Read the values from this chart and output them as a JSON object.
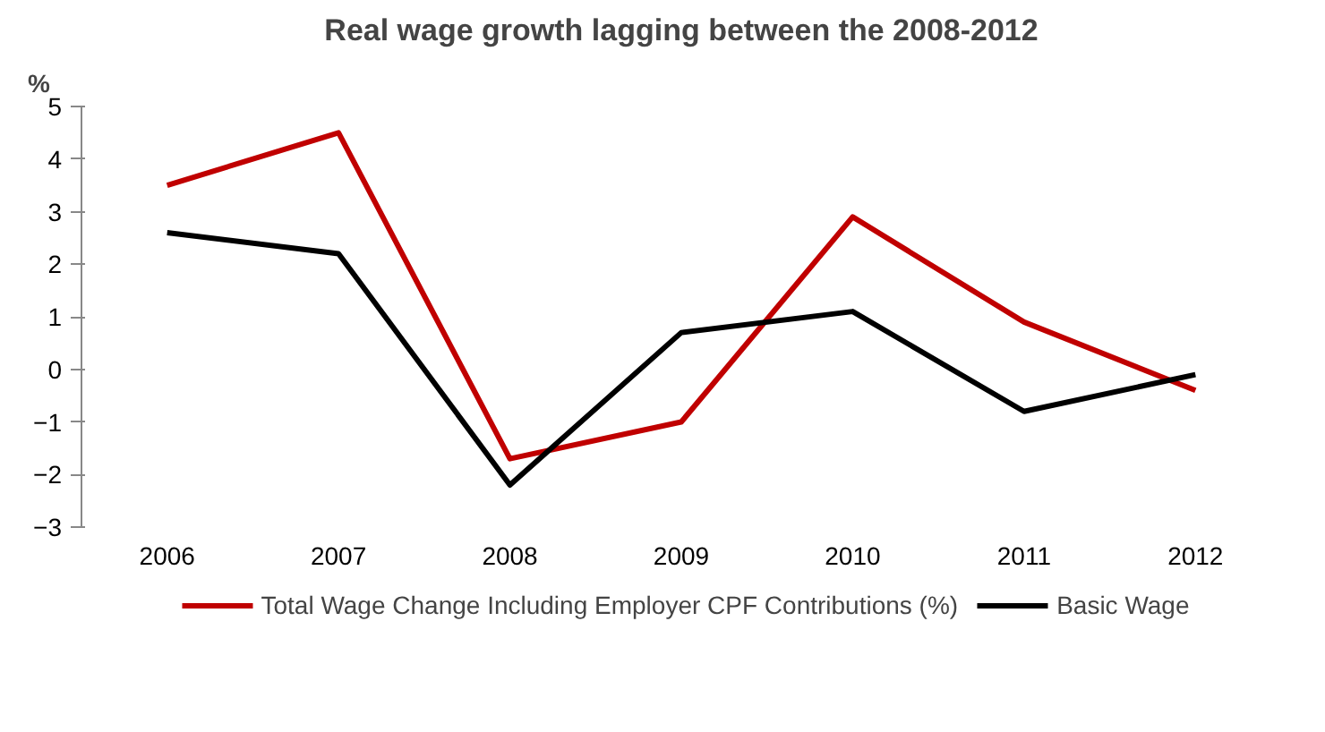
{
  "chart_data": {
    "type": "line",
    "title": "Real wage growth lagging between the 2008-2012",
    "ylabel": "%",
    "categories": [
      "2006",
      "2007",
      "2008",
      "2009",
      "2010",
      "2011",
      "2012"
    ],
    "series": [
      {
        "name": "Total Wage Change Including Employer CPF Contributions (%)",
        "color": "#c00000",
        "values": [
          3.5,
          4.5,
          -1.7,
          -1.0,
          2.9,
          0.9,
          -0.4
        ]
      },
      {
        "name": "Basic Wage",
        "color": "#000000",
        "values": [
          2.6,
          2.2,
          -2.2,
          0.7,
          1.1,
          -0.8,
          -0.1
        ]
      }
    ],
    "ylim": [
      -3,
      5
    ],
    "yticks": [
      -3,
      -2,
      -1,
      0,
      1,
      2,
      3,
      4,
      5
    ],
    "grid": false,
    "legend": "bottom",
    "marker": "none",
    "line_style": "solid"
  }
}
